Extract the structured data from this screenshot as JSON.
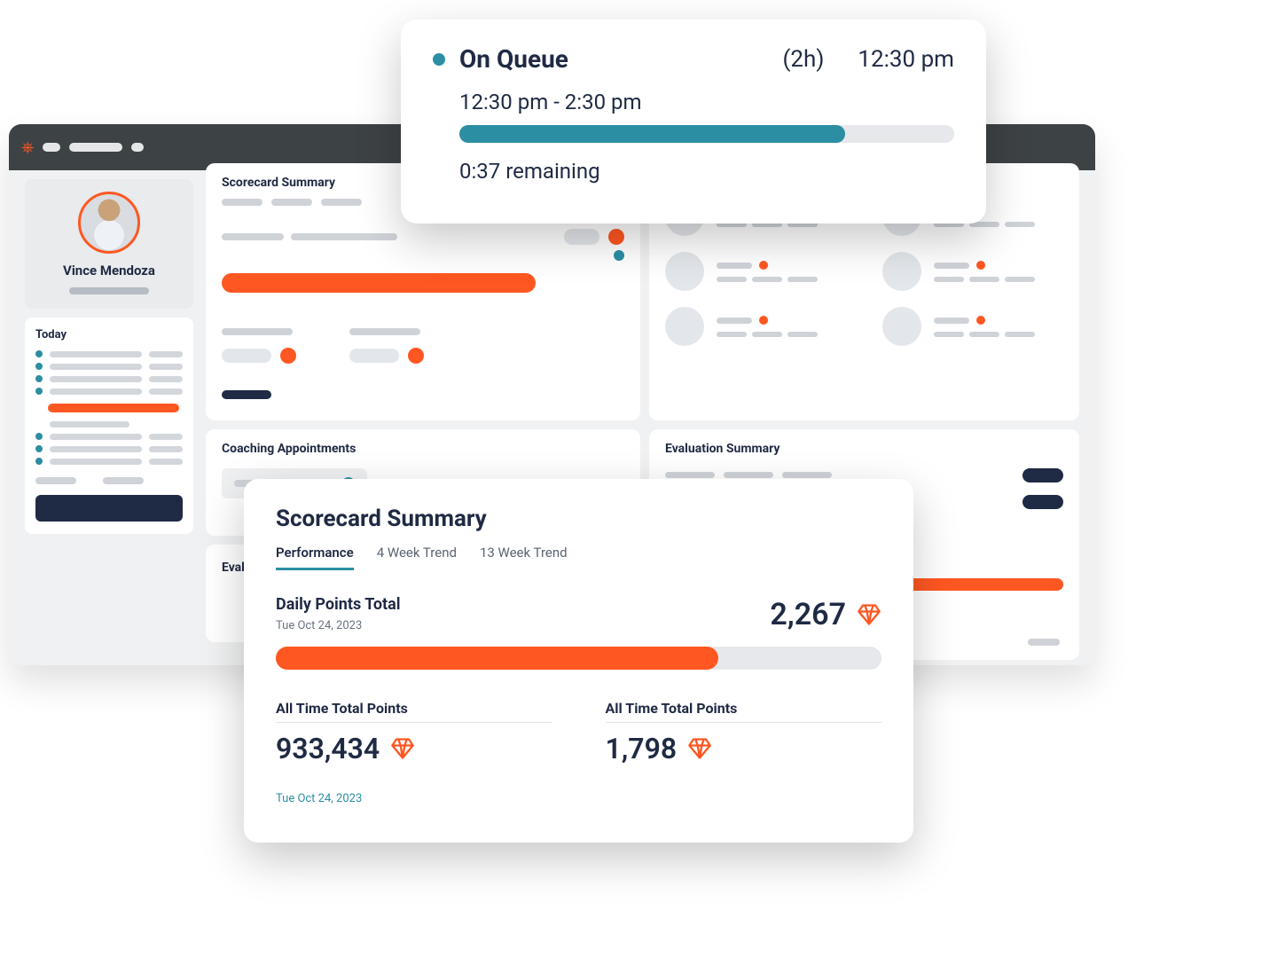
{
  "colors": {
    "accent_orange": "#ff5722",
    "accent_teal": "#2b8ea3",
    "navy": "#1f2a44",
    "panel_bg": "#ffffff",
    "dash_bg": "#f0f1f2",
    "titlebar_bg": "#3d4244",
    "muted": "#cfd3d8",
    "track_bg": "#e6e8eb"
  },
  "dashboard": {
    "user_name": "Vince Mendoza",
    "today_label": "Today",
    "panels": {
      "scorecard_summary": "Scorecard Summary",
      "coaching_appointments": "Coaching Appointments",
      "evaluation_summary": "Evaluation Summary",
      "eval_stub": "Eval"
    }
  },
  "queue_popover": {
    "status_label": "On Queue",
    "duration_label": "(2h)",
    "clock": "12:30 pm",
    "range": "12:30 pm - 2:30 pm",
    "progress_pct": 78,
    "remaining": "0:37 remaining",
    "status_dot_color": "#2b8ea3",
    "bar_fill_color": "#2b8ea3"
  },
  "scorecard_popover": {
    "title": "Scorecard Summary",
    "tabs": [
      {
        "label": "Performance",
        "active": true
      },
      {
        "label": "4 Week Trend",
        "active": false
      },
      {
        "label": "13 Week Trend",
        "active": false
      }
    ],
    "daily_points": {
      "heading": "Daily Points Total",
      "date": "Tue Oct 24, 2023",
      "value": "2,267",
      "progress_pct": 73,
      "bar_fill_color": "#ff5722"
    },
    "totals": [
      {
        "label": "All Time Total Points",
        "value": "933,434"
      },
      {
        "label": "All Time Total Points",
        "value": "1,798"
      }
    ],
    "footer_date": "Tue Oct 24, 2023",
    "gem_icon_color": "#ff5722"
  }
}
